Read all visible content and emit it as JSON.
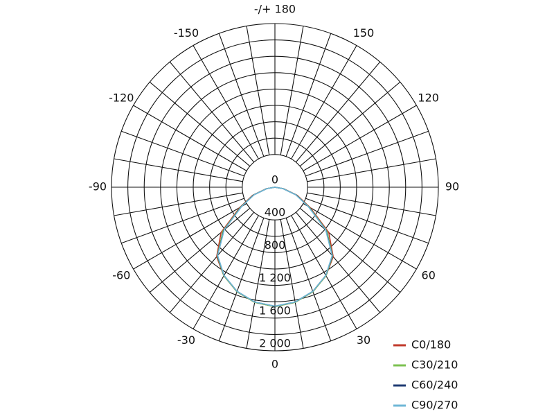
{
  "chart_data": {
    "type": "polar",
    "x": [
      -90,
      -80,
      -70,
      -60,
      -50,
      -40,
      -30,
      -20,
      -10,
      0,
      10,
      20,
      30,
      40,
      50,
      60,
      70,
      80,
      90
    ],
    "series": [
      {
        "name": "C0/180",
        "color": "#c0392b",
        "values": [
          0,
          110,
          290,
          500,
          860,
          1110,
          1250,
          1360,
          1430,
          1460,
          1430,
          1360,
          1250,
          1110,
          860,
          500,
          290,
          110,
          0
        ]
      },
      {
        "name": "C30/210",
        "color": "#7cc151",
        "values": [
          0,
          105,
          280,
          485,
          830,
          1100,
          1250,
          1360,
          1430,
          1460,
          1430,
          1360,
          1250,
          1100,
          830,
          485,
          280,
          105,
          0
        ]
      },
      {
        "name": "C60/240",
        "color": "#1f3b73",
        "values": [
          0,
          100,
          275,
          475,
          815,
          1095,
          1245,
          1355,
          1425,
          1455,
          1425,
          1355,
          1245,
          1095,
          815,
          475,
          275,
          100,
          0
        ]
      },
      {
        "name": "C90/270",
        "color": "#6fb7d6",
        "values": [
          0,
          100,
          270,
          470,
          810,
          1090,
          1245,
          1355,
          1425,
          1455,
          1425,
          1355,
          1245,
          1090,
          810,
          470,
          270,
          100,
          0
        ]
      }
    ],
    "rlim": [
      0,
      2000
    ],
    "rticks": [
      0,
      400,
      800,
      {
        "value": 1200,
        "label": "1 200"
      },
      {
        "value": 1600,
        "label": "1 600"
      },
      {
        "value": 2000,
        "label": "2 000"
      }
    ],
    "rgrid": [
      400,
      600,
      800,
      1000,
      1200,
      1400,
      1600,
      1800,
      2000
    ],
    "thetaticks": [
      -150,
      -120,
      -90,
      -60,
      -30,
      0,
      30,
      60,
      90,
      120,
      150,
      {
        "value": 180,
        "label": "-/+ 180"
      }
    ],
    "thetagrid": [
      -170,
      -160,
      -150,
      -140,
      -130,
      -120,
      -110,
      -100,
      -90,
      -80,
      -70,
      -60,
      -50,
      -40,
      -30,
      -20,
      -10,
      0,
      10,
      20,
      30,
      40,
      50,
      60,
      70,
      80,
      90,
      100,
      110,
      120,
      130,
      140,
      150,
      160,
      170,
      180
    ],
    "legend": "bottom-right"
  }
}
